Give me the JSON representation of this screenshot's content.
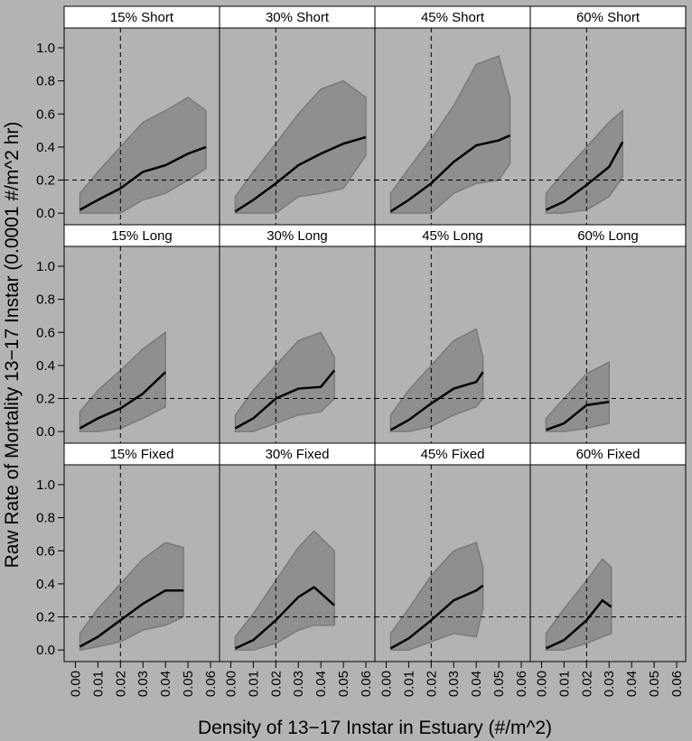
{
  "axis_labels": {
    "x": "Density of 13−17 Instar in Estuary (#/m^2)",
    "y": "Raw Rate of Mortality 13−17 Instar (0.0001 #/m^2 hr)"
  },
  "chart_data": [
    {
      "type": "scatter",
      "title": "15% Short",
      "x": [
        0.002,
        0.01,
        0.02,
        0.03,
        0.04,
        0.05,
        0.058
      ],
      "values": [
        0.02,
        0.08,
        0.15,
        0.25,
        0.29,
        0.36,
        0.4
      ],
      "upper": [
        0.12,
        0.25,
        0.4,
        0.55,
        0.62,
        0.7,
        0.62
      ],
      "lower": [
        0,
        0,
        0,
        0.08,
        0.12,
        0.2,
        0.27
      ],
      "xlim": [
        -0.005,
        0.064
      ],
      "ylim": [
        -0.07,
        1.12
      ],
      "ref_x": 0.02,
      "ref_y": 0.2,
      "yticks": [
        {
          "value": 0,
          "label": "0.0"
        },
        {
          "value": 0.2,
          "label": "0.2"
        },
        {
          "value": 0.4,
          "label": "0.4"
        },
        {
          "value": 0.6,
          "label": "0.6"
        },
        {
          "value": 0.8,
          "label": "0.8"
        },
        {
          "value": 1,
          "label": "1.0"
        }
      ]
    },
    {
      "type": "scatter",
      "title": "30% Short",
      "x": [
        0.002,
        0.01,
        0.02,
        0.03,
        0.04,
        0.05,
        0.06
      ],
      "values": [
        0.01,
        0.08,
        0.18,
        0.29,
        0.36,
        0.42,
        0.46
      ],
      "upper": [
        0.1,
        0.25,
        0.42,
        0.6,
        0.75,
        0.8,
        0.7
      ],
      "lower": [
        0,
        0,
        0,
        0.1,
        0.12,
        0.15,
        0.35
      ],
      "xlim": [
        -0.005,
        0.064
      ],
      "ylim": [
        -0.07,
        1.12
      ],
      "ref_x": 0.02,
      "ref_y": 0.2
    },
    {
      "type": "scatter",
      "title": "45% Short",
      "x": [
        0.002,
        0.01,
        0.02,
        0.03,
        0.04,
        0.05,
        0.055
      ],
      "values": [
        0.01,
        0.08,
        0.18,
        0.31,
        0.41,
        0.44,
        0.47
      ],
      "upper": [
        0.12,
        0.27,
        0.45,
        0.65,
        0.9,
        0.95,
        0.7
      ],
      "lower": [
        0,
        0,
        0,
        0.12,
        0.18,
        0.2,
        0.3
      ],
      "xlim": [
        -0.005,
        0.064
      ],
      "ylim": [
        -0.07,
        1.12
      ],
      "ref_x": 0.02,
      "ref_y": 0.2
    },
    {
      "type": "scatter",
      "title": "60% Short",
      "x": [
        0.002,
        0.01,
        0.02,
        0.03,
        0.036
      ],
      "values": [
        0.02,
        0.07,
        0.17,
        0.28,
        0.43
      ],
      "upper": [
        0.12,
        0.25,
        0.4,
        0.55,
        0.62
      ],
      "lower": [
        0,
        0,
        0.02,
        0.1,
        0.22
      ],
      "xlim": [
        -0.005,
        0.064
      ],
      "ylim": [
        -0.07,
        1.12
      ],
      "ref_x": 0.02,
      "ref_y": 0.2
    },
    {
      "type": "scatter",
      "title": "15% Long",
      "x": [
        0.002,
        0.01,
        0.02,
        0.03,
        0.04
      ],
      "values": [
        0.02,
        0.08,
        0.14,
        0.23,
        0.36
      ],
      "upper": [
        0.12,
        0.25,
        0.37,
        0.5,
        0.6
      ],
      "lower": [
        0,
        0,
        0.02,
        0.08,
        0.15
      ],
      "xlim": [
        -0.005,
        0.064
      ],
      "ylim": [
        -0.07,
        1.12
      ],
      "ref_x": 0.02,
      "ref_y": 0.2,
      "yticks": [
        {
          "value": 0,
          "label": "0.0"
        },
        {
          "value": 0.2,
          "label": "0.2"
        },
        {
          "value": 0.4,
          "label": "0.4"
        },
        {
          "value": 0.6,
          "label": "0.6"
        },
        {
          "value": 0.8,
          "label": "0.8"
        },
        {
          "value": 1,
          "label": "1.0"
        }
      ]
    },
    {
      "type": "scatter",
      "title": "30% Long",
      "x": [
        0.002,
        0.01,
        0.02,
        0.03,
        0.04,
        0.046
      ],
      "values": [
        0.02,
        0.08,
        0.2,
        0.26,
        0.27,
        0.37
      ],
      "upper": [
        0.1,
        0.25,
        0.4,
        0.55,
        0.6,
        0.45
      ],
      "lower": [
        0,
        0,
        0.05,
        0.1,
        0.12,
        0.2
      ],
      "xlim": [
        -0.005,
        0.064
      ],
      "ylim": [
        -0.07,
        1.12
      ],
      "ref_x": 0.02,
      "ref_y": 0.2
    },
    {
      "type": "scatter",
      "title": "45% Long",
      "x": [
        0.002,
        0.01,
        0.02,
        0.03,
        0.04,
        0.043
      ],
      "values": [
        0.01,
        0.07,
        0.17,
        0.26,
        0.3,
        0.36
      ],
      "upper": [
        0.1,
        0.25,
        0.4,
        0.55,
        0.62,
        0.45
      ],
      "lower": [
        0,
        0,
        0.03,
        0.1,
        0.15,
        0.2
      ],
      "xlim": [
        -0.005,
        0.064
      ],
      "ylim": [
        -0.07,
        1.12
      ],
      "ref_x": 0.02,
      "ref_y": 0.2
    },
    {
      "type": "scatter",
      "title": "60% Long",
      "x": [
        0.002,
        0.01,
        0.02,
        0.03
      ],
      "values": [
        0.01,
        0.05,
        0.16,
        0.18
      ],
      "upper": [
        0.08,
        0.2,
        0.35,
        0.42
      ],
      "lower": [
        0,
        0,
        0.02,
        0.05
      ],
      "xlim": [
        -0.005,
        0.064
      ],
      "ylim": [
        -0.07,
        1.12
      ],
      "ref_x": 0.02,
      "ref_y": 0.2
    },
    {
      "type": "scatter",
      "title": "15% Fixed",
      "x": [
        0.002,
        0.01,
        0.02,
        0.03,
        0.04,
        0.048
      ],
      "values": [
        0.02,
        0.08,
        0.18,
        0.28,
        0.36,
        0.36
      ],
      "upper": [
        0.1,
        0.25,
        0.4,
        0.55,
        0.65,
        0.62
      ],
      "lower": [
        0,
        0.02,
        0.05,
        0.12,
        0.15,
        0.2
      ],
      "xlim": [
        -0.005,
        0.064
      ],
      "ylim": [
        -0.07,
        1.12
      ],
      "ref_x": 0.02,
      "ref_y": 0.2,
      "yticks": [
        {
          "value": 0,
          "label": "0.0"
        },
        {
          "value": 0.2,
          "label": "0.2"
        },
        {
          "value": 0.4,
          "label": "0.4"
        },
        {
          "value": 0.6,
          "label": "0.6"
        },
        {
          "value": 0.8,
          "label": "0.8"
        },
        {
          "value": 1,
          "label": "1.0"
        }
      ],
      "xticks": [
        {
          "value": 0,
          "label": "0.00"
        },
        {
          "value": 0.01,
          "label": "0.01"
        },
        {
          "value": 0.02,
          "label": "0.02"
        },
        {
          "value": 0.03,
          "label": "0.03"
        },
        {
          "value": 0.04,
          "label": "0.04"
        },
        {
          "value": 0.05,
          "label": "0.05"
        },
        {
          "value": 0.06,
          "label": "0.06"
        }
      ]
    },
    {
      "type": "scatter",
      "title": "30% Fixed",
      "x": [
        0.002,
        0.01,
        0.02,
        0.03,
        0.037,
        0.046
      ],
      "values": [
        0.01,
        0.06,
        0.18,
        0.32,
        0.38,
        0.27
      ],
      "upper": [
        0.08,
        0.22,
        0.42,
        0.62,
        0.72,
        0.6
      ],
      "lower": [
        0,
        0,
        0.04,
        0.12,
        0.15,
        0.15
      ],
      "xlim": [
        -0.005,
        0.064
      ],
      "ylim": [
        -0.07,
        1.12
      ],
      "ref_x": 0.02,
      "ref_y": 0.2,
      "xticks": [
        {
          "value": 0,
          "label": "0.00"
        },
        {
          "value": 0.01,
          "label": "0.01"
        },
        {
          "value": 0.02,
          "label": "0.02"
        },
        {
          "value": 0.03,
          "label": "0.03"
        },
        {
          "value": 0.04,
          "label": "0.04"
        },
        {
          "value": 0.05,
          "label": "0.05"
        },
        {
          "value": 0.06,
          "label": "0.06"
        }
      ]
    },
    {
      "type": "scatter",
      "title": "45% Fixed",
      "x": [
        0.002,
        0.01,
        0.02,
        0.03,
        0.04,
        0.043
      ],
      "values": [
        0.01,
        0.07,
        0.18,
        0.3,
        0.36,
        0.39
      ],
      "upper": [
        0.1,
        0.25,
        0.45,
        0.6,
        0.65,
        0.5
      ],
      "lower": [
        0,
        0,
        0.05,
        0.1,
        0.08,
        0.25
      ],
      "xlim": [
        -0.005,
        0.064
      ],
      "ylim": [
        -0.07,
        1.12
      ],
      "ref_x": 0.02,
      "ref_y": 0.2,
      "xticks": [
        {
          "value": 0,
          "label": "0.00"
        },
        {
          "value": 0.01,
          "label": "0.01"
        },
        {
          "value": 0.02,
          "label": "0.02"
        },
        {
          "value": 0.03,
          "label": "0.03"
        },
        {
          "value": 0.04,
          "label": "0.04"
        },
        {
          "value": 0.05,
          "label": "0.05"
        },
        {
          "value": 0.06,
          "label": "0.06"
        }
      ]
    },
    {
      "type": "scatter",
      "title": "60% Fixed",
      "x": [
        0.002,
        0.01,
        0.02,
        0.027,
        0.031
      ],
      "values": [
        0.01,
        0.06,
        0.18,
        0.3,
        0.26
      ],
      "upper": [
        0.1,
        0.25,
        0.42,
        0.55,
        0.5
      ],
      "lower": [
        0,
        0,
        0.04,
        0.08,
        0.1
      ],
      "xlim": [
        -0.005,
        0.064
      ],
      "ylim": [
        -0.07,
        1.12
      ],
      "ref_x": 0.02,
      "ref_y": 0.2,
      "xticks": [
        {
          "value": 0,
          "label": "0.00"
        },
        {
          "value": 0.01,
          "label": "0.01"
        },
        {
          "value": 0.02,
          "label": "0.02"
        },
        {
          "value": 0.03,
          "label": "0.03"
        },
        {
          "value": 0.04,
          "label": "0.04"
        },
        {
          "value": 0.05,
          "label": "0.05"
        },
        {
          "value": 0.06,
          "label": "0.06"
        }
      ]
    }
  ]
}
